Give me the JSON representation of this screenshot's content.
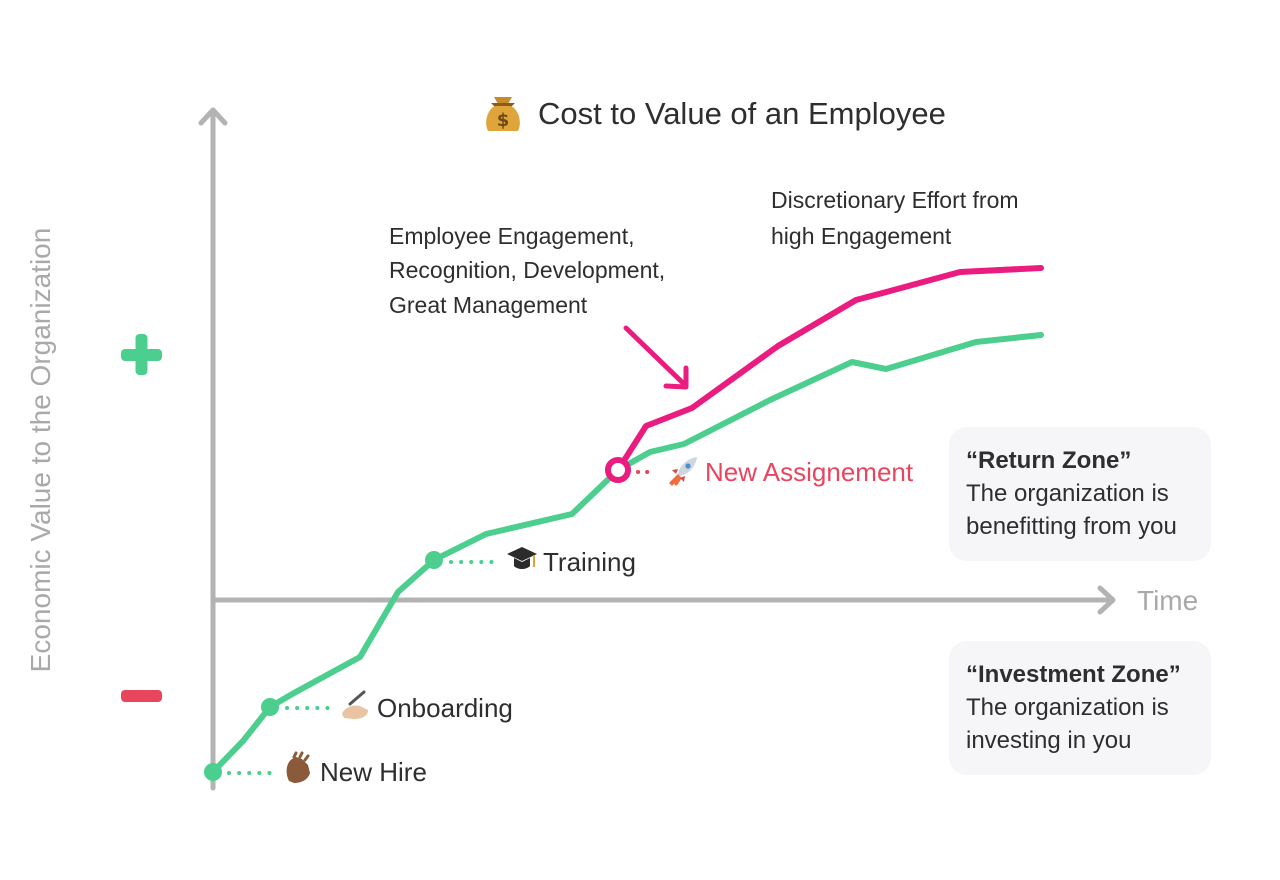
{
  "title": "Cost to Value of an Employee",
  "title_icon": "money-bag-icon",
  "y_axis_label": "Economic Value to the Organization",
  "x_axis_label": "Time",
  "plus_symbol": "+",
  "minus_symbol": "−",
  "milestones": [
    {
      "icon": "waving-hand-icon",
      "label": "New Hire"
    },
    {
      "icon": "writing-hand-icon",
      "label": "Onboarding"
    },
    {
      "icon": "graduation-cap-icon",
      "label": "Training"
    },
    {
      "icon": "rocket-icon",
      "label": "New Assignement"
    }
  ],
  "annotations": {
    "engagement": [
      "Employee Engagement,",
      "Recognition, Development,",
      "Great Management"
    ],
    "discretionary": [
      "Discretionary Effort from",
      "high Engagement"
    ]
  },
  "zones": {
    "return": {
      "title": "“Return Zone”",
      "desc": "The organization is\nbenefitting from you"
    },
    "investment": {
      "title": "“Investment Zone”",
      "desc": "The organization is\ninvesting in you"
    }
  },
  "colors": {
    "axis": "#b3b3b3",
    "base_curve": "#4ccf8e",
    "engaged_curve": "#ea1c7f",
    "plus": "#4ccf8e",
    "minus": "#e8455f",
    "new_assignment_text": "#e8455f",
    "zone_bg": "#f6f5f7"
  }
}
